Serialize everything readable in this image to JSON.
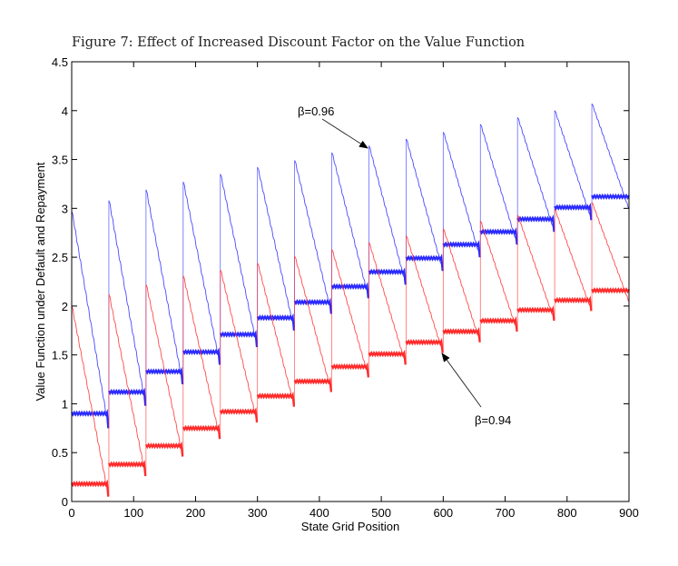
{
  "chart_data": {
    "type": "line",
    "title": "Figure 7: Effect of Increased Discount Factor on the Value Function",
    "xlabel": "State Grid Position",
    "ylabel": "Value Function under Default and Repayment",
    "xlim": [
      0,
      900
    ],
    "ylim": [
      0,
      4.5
    ],
    "xticks": [
      "0",
      "100",
      "200",
      "300",
      "400",
      "500",
      "600",
      "700",
      "800",
      "900"
    ],
    "xtick_values": [
      0,
      100,
      200,
      300,
      400,
      500,
      600,
      700,
      800,
      900
    ],
    "yticks": [
      "0",
      "0.5",
      "1",
      "1.5",
      "2",
      "2.5",
      "3",
      "3.5",
      "4",
      "4.5"
    ],
    "ytick_values": [
      0,
      0.5,
      1,
      1.5,
      2,
      2.5,
      3,
      3.5,
      4,
      4.5
    ],
    "grid": false,
    "block_size": 60,
    "block_starts": [
      0,
      60,
      120,
      180,
      240,
      300,
      360,
      420,
      480,
      540,
      600,
      660,
      720,
      780,
      840
    ],
    "series": [
      {
        "name": "β=0.96",
        "color": "#2a2aff",
        "repayment_peaks": [
          2.97,
          3.08,
          3.19,
          3.27,
          3.35,
          3.42,
          3.49,
          3.57,
          3.64,
          3.71,
          3.78,
          3.86,
          3.93,
          4.0,
          4.07
        ],
        "default_levels": [
          0.9,
          1.12,
          1.33,
          1.53,
          1.71,
          1.88,
          2.04,
          2.2,
          2.35,
          2.49,
          2.63,
          2.76,
          2.89,
          3.01,
          3.12
        ],
        "block_minimums": [
          0.75,
          0.98,
          1.2,
          1.4,
          1.58,
          1.75,
          1.92,
          2.08,
          2.22,
          2.36,
          2.5,
          2.63,
          2.76,
          2.88,
          3.0
        ]
      },
      {
        "name": "β=0.94",
        "color": "#ff2a2a",
        "repayment_peaks": [
          2.0,
          2.12,
          2.22,
          2.31,
          2.37,
          2.44,
          2.51,
          2.58,
          2.65,
          2.72,
          2.79,
          2.87,
          2.93,
          2.99,
          3.06
        ],
        "default_levels": [
          0.18,
          0.38,
          0.57,
          0.75,
          0.92,
          1.08,
          1.23,
          1.38,
          1.51,
          1.63,
          1.74,
          1.85,
          1.96,
          2.06,
          2.16
        ],
        "block_minimums": [
          0.05,
          0.26,
          0.46,
          0.64,
          0.81,
          0.97,
          1.12,
          1.27,
          1.4,
          1.52,
          1.63,
          1.74,
          1.85,
          1.95,
          2.05
        ]
      }
    ],
    "annotations": [
      {
        "text": "β=0.96",
        "series": "β=0.96",
        "points_to": [
          480,
          3.64
        ]
      },
      {
        "text": "β=0.94",
        "series": "β=0.94",
        "points_to": [
          600,
          1.51
        ]
      }
    ]
  }
}
